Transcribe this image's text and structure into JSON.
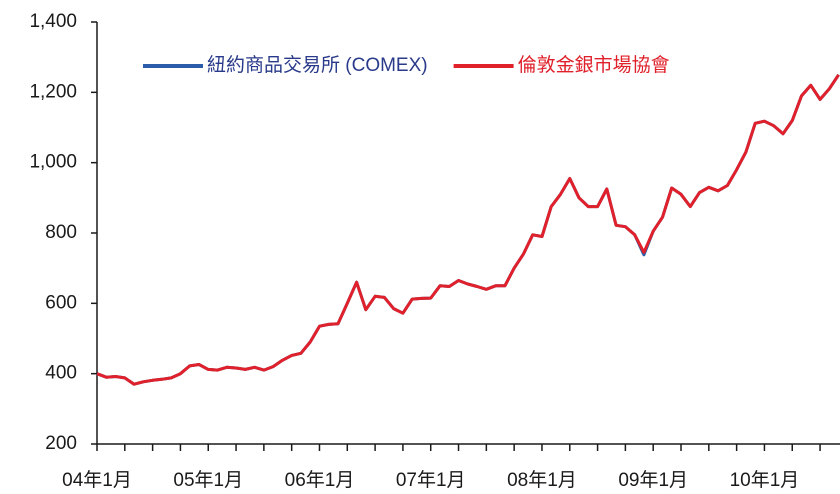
{
  "chart_data": {
    "type": "line",
    "categories": [
      "04年1月",
      null,
      null,
      null,
      null,
      null,
      null,
      null,
      null,
      null,
      null,
      null,
      "05年1月",
      null,
      null,
      null,
      null,
      null,
      null,
      null,
      null,
      null,
      null,
      null,
      "06年1月",
      null,
      null,
      null,
      null,
      null,
      null,
      null,
      null,
      null,
      null,
      null,
      "07年1月",
      null,
      null,
      null,
      null,
      null,
      null,
      null,
      null,
      null,
      null,
      null,
      "08年1月",
      null,
      null,
      null,
      null,
      null,
      null,
      null,
      null,
      null,
      null,
      null,
      "09年1月",
      null,
      null,
      null,
      null,
      null,
      null,
      null,
      null,
      null,
      null,
      null,
      "10年1月",
      null,
      null,
      null,
      null,
      null,
      null,
      null,
      null
    ],
    "series": [
      {
        "name": "紐約商品交易所 (COMEX)",
        "color": "#2a5caa",
        "values": [
          400,
          390,
          392,
          388,
          370,
          377,
          381,
          384,
          388,
          400,
          422,
          426,
          412,
          410,
          418,
          416,
          412,
          418,
          410,
          420,
          438,
          452,
          458,
          490,
          535,
          540,
          542,
          600,
          660,
          582,
          620,
          617,
          585,
          572,
          612,
          614,
          615,
          650,
          648,
          665,
          655,
          648,
          640,
          650,
          650,
          700,
          740,
          795,
          790,
          875,
          910,
          955,
          900,
          875,
          875,
          925,
          822,
          818,
          795,
          738,
          805,
          845,
          928,
          910,
          875,
          915,
          930,
          920,
          935,
          980,
          1030,
          1112,
          1118,
          1105,
          1082,
          1120,
          1190,
          1220,
          1180,
          1210,
          1250
        ]
      },
      {
        "name": "倫敦金銀市場協會",
        "color": "#e0202a",
        "values": [
          400,
          390,
          392,
          388,
          370,
          377,
          381,
          384,
          388,
          400,
          422,
          426,
          412,
          410,
          418,
          416,
          412,
          418,
          410,
          420,
          438,
          452,
          458,
          490,
          535,
          540,
          542,
          600,
          660,
          582,
          620,
          617,
          585,
          572,
          612,
          614,
          615,
          650,
          648,
          665,
          655,
          648,
          640,
          650,
          650,
          700,
          740,
          795,
          790,
          875,
          910,
          955,
          900,
          875,
          875,
          925,
          822,
          818,
          795,
          745,
          805,
          845,
          928,
          910,
          875,
          915,
          930,
          920,
          935,
          980,
          1030,
          1112,
          1118,
          1105,
          1082,
          1120,
          1190,
          1220,
          1180,
          1210,
          1250
        ]
      }
    ],
    "ylim": [
      200,
      1400
    ],
    "yticks": [
      200,
      400,
      600,
      800,
      {
        "value": 1000,
        "label": "1,000"
      },
      {
        "value": 1200,
        "label": "1,200"
      },
      {
        "value": 1400,
        "label": "1,400"
      }
    ],
    "legend": "top"
  }
}
